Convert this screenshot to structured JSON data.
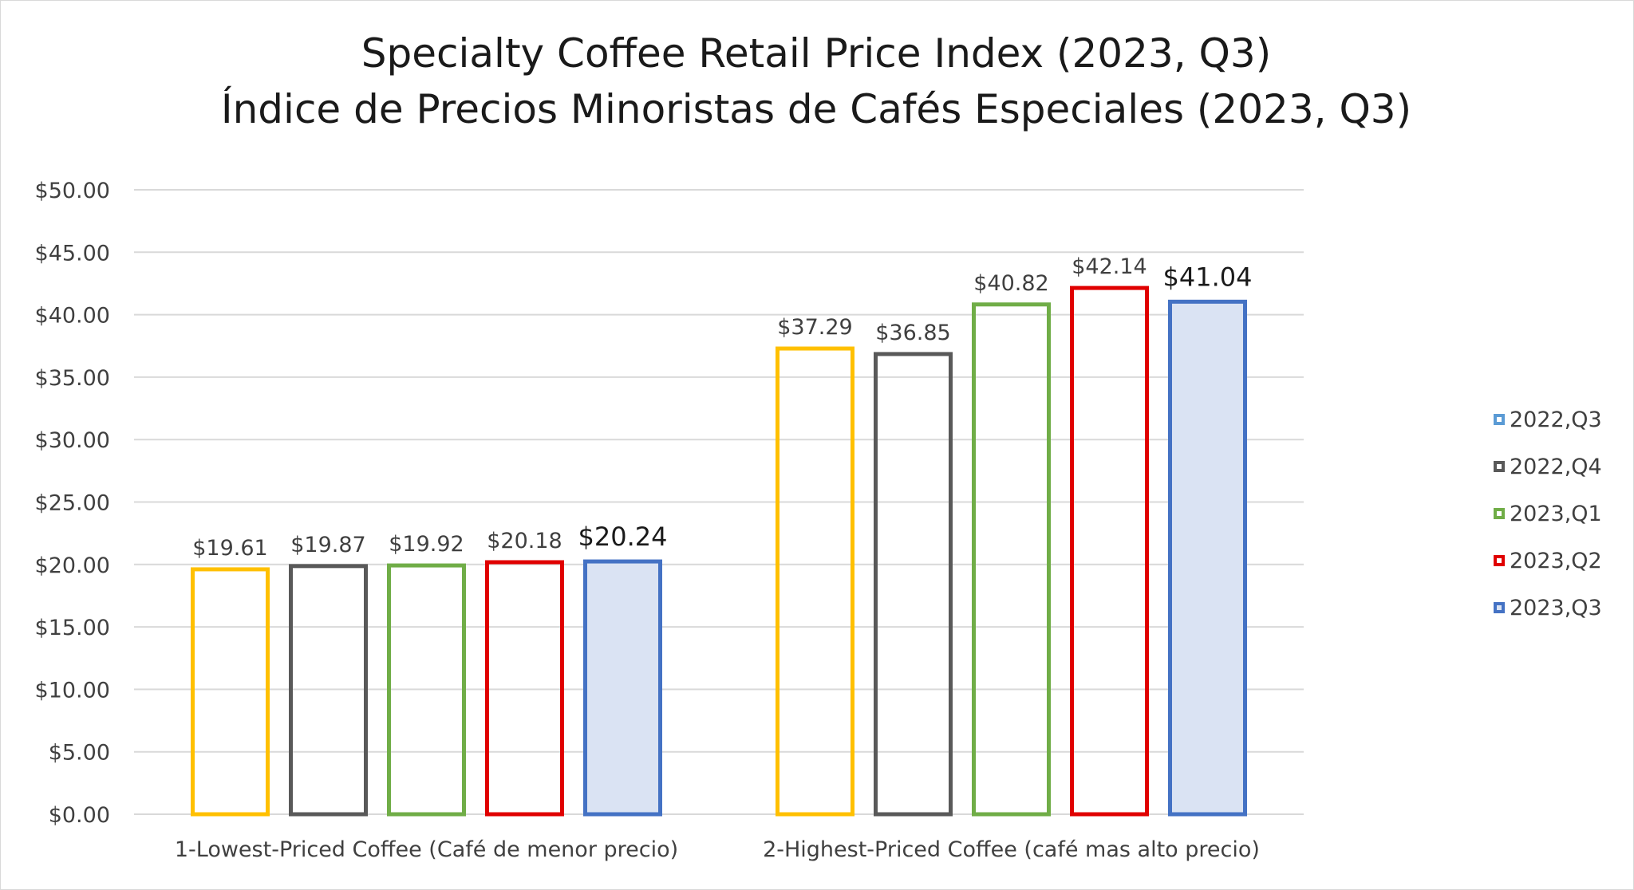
{
  "chart_data": {
    "type": "bar",
    "title": "Specialty Coffee Retail Price Index (2023, Q3)",
    "subtitle": "Índice de Precios Minoristas de Cafés Especiales (2023, Q3)",
    "categories": [
      "1-Lowest-Priced Coffee (Café de menor precio)",
      "2-Highest-Priced Coffee (café mas alto precio)"
    ],
    "series": [
      {
        "name": "2022,Q3",
        "values": [
          19.61,
          37.29
        ],
        "labels": [
          "$19.61",
          "$37.29"
        ],
        "color": "#FFC000",
        "legend_color": "#5B9BD5",
        "fill": "none"
      },
      {
        "name": "2022,Q4",
        "values": [
          19.87,
          36.85
        ],
        "labels": [
          "$19.87",
          "$36.85"
        ],
        "color": "#595959",
        "legend_color": "#595959",
        "fill": "none"
      },
      {
        "name": "2023,Q1",
        "values": [
          19.92,
          40.82
        ],
        "labels": [
          "$19.92",
          "$40.82"
        ],
        "color": "#70AD47",
        "legend_color": "#70AD47",
        "fill": "none"
      },
      {
        "name": "2023,Q2",
        "values": [
          20.18,
          42.14
        ],
        "labels": [
          "$20.18",
          "$42.14"
        ],
        "color": "#E00000",
        "legend_color": "#E00000",
        "fill": "none"
      },
      {
        "name": "2023,Q3",
        "values": [
          20.24,
          41.04
        ],
        "labels": [
          "$20.24",
          "$41.04"
        ],
        "color": "#4472C4",
        "legend_color": "#4472C4",
        "fill": "#DAE3F3",
        "emphasized": true
      }
    ],
    "y_ticks": [
      "$0.00",
      "$5.00",
      "$10.00",
      "$15.00",
      "$20.00",
      "$25.00",
      "$30.00",
      "$35.00",
      "$40.00",
      "$45.00",
      "$50.00"
    ],
    "ylim": [
      0,
      50
    ],
    "grid": true,
    "legend": "right"
  }
}
